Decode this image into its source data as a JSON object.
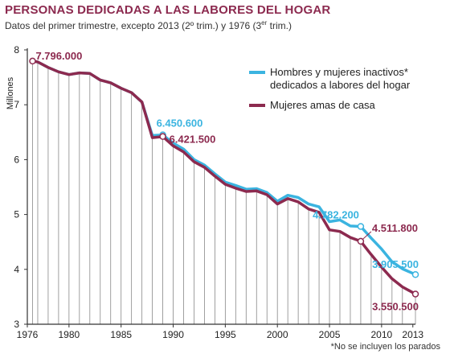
{
  "header": {
    "title": "PERSONAS DEDICADAS A LAS LABORES DEL HOGAR",
    "subtitle_main": "Datos del primer trimestre, excepto 2013 (2º trim.) y 1976 (3",
    "subtitle_sup": "er",
    "subtitle_end": " trim.)"
  },
  "footnote": "*No se incluyen los parados",
  "colors": {
    "series1": "#3bb4e0",
    "series2": "#8c2a4f",
    "axis": "#333333",
    "vgrid": "#888888"
  },
  "chart_data": {
    "type": "line",
    "ylabel": "Millones",
    "xlim": [
      1976,
      2013.25
    ],
    "ylim": [
      3,
      8
    ],
    "yticks": [
      3,
      4,
      5,
      6,
      7,
      8
    ],
    "xticks": [
      1976,
      1980,
      1985,
      1990,
      1995,
      2000,
      2005,
      2010,
      2013
    ],
    "x": [
      1976.5,
      1977,
      1978,
      1979,
      1980,
      1981,
      1982,
      1983,
      1984,
      1985,
      1986,
      1987,
      1988,
      1989,
      1990,
      1991,
      1992,
      1993,
      1994,
      1995,
      1996,
      1997,
      1998,
      1999,
      2000,
      2001,
      2002,
      2003,
      2004,
      2005,
      2006,
      2007,
      2008,
      2009,
      2010,
      2011,
      2012,
      2013.25
    ],
    "legend_position": "top-right",
    "series": [
      {
        "name": "Hombres y mujeres inactivos*",
        "name_line2": "dedicados a labores del hogar",
        "values": [
          7.796,
          7.78,
          7.68,
          7.6,
          7.55,
          7.58,
          7.57,
          7.45,
          7.4,
          7.3,
          7.22,
          7.05,
          6.44,
          6.4506,
          6.3,
          6.19,
          6.0,
          5.9,
          5.74,
          5.59,
          5.53,
          5.46,
          5.47,
          5.4,
          5.24,
          5.35,
          5.31,
          5.19,
          5.14,
          4.87,
          4.9,
          4.79,
          4.7822,
          4.57,
          4.37,
          4.14,
          4.01,
          3.9055
        ]
      },
      {
        "name": "Mujeres amas de casa",
        "values": [
          7.796,
          7.78,
          7.68,
          7.6,
          7.55,
          7.58,
          7.57,
          7.45,
          7.4,
          7.3,
          7.22,
          7.05,
          6.4,
          6.4215,
          6.25,
          6.14,
          5.96,
          5.86,
          5.7,
          5.55,
          5.48,
          5.42,
          5.43,
          5.36,
          5.19,
          5.29,
          5.23,
          5.1,
          5.04,
          4.72,
          4.69,
          4.58,
          4.5118,
          4.27,
          4.04,
          3.83,
          3.68,
          3.5505
        ]
      }
    ],
    "annotations": [
      {
        "text": "7.796.000",
        "series": 1,
        "index": 0
      },
      {
        "text": "6.450.600",
        "series": 0,
        "index": 13
      },
      {
        "text": "6.421.500",
        "series": 1,
        "index": 13
      },
      {
        "text": "4.782.200",
        "series": 0,
        "index": 32
      },
      {
        "text": "4.511.800",
        "series": 1,
        "index": 32
      },
      {
        "text": "3.905.500",
        "series": 0,
        "index": 37
      },
      {
        "text": "3.550.500",
        "series": 1,
        "index": 37
      }
    ]
  }
}
